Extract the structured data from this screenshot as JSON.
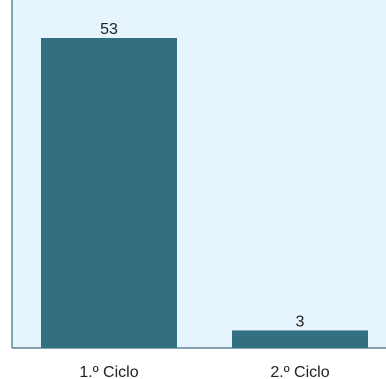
{
  "chart_data": {
    "type": "bar",
    "categories": [
      "1.º Ciclo",
      "2.º Ciclo"
    ],
    "values": [
      53,
      3
    ],
    "data_labels": [
      "53",
      "3"
    ],
    "title": "",
    "xlabel": "",
    "ylabel": "",
    "ylim": [
      0,
      56
    ],
    "grid": false,
    "legend": "none"
  },
  "colors": {
    "background": "#e6f4fd",
    "bar": "#326f80",
    "axis": "#3d6f7e"
  }
}
